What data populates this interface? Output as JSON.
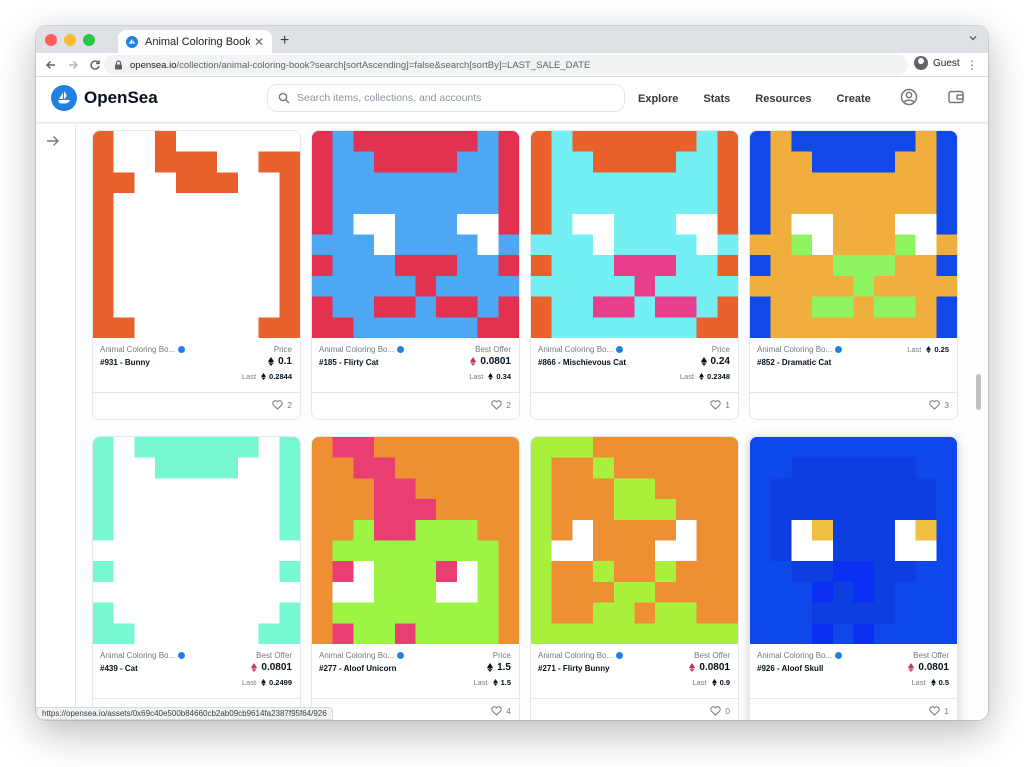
{
  "browser": {
    "tab_title": "Animal Coloring Book - Collecti",
    "url_host": "opensea.io",
    "url_path": "/collection/animal-coloring-book?search[sortAscending]=false&search[sortBy]=LAST_SALE_DATE",
    "profile_label": "Guest",
    "status_url": "https://opensea.io/assets/0x69c40e500b84660cb2ab09cb9614fa2387f95f64/926"
  },
  "header": {
    "logo_text": "OpenSea",
    "search_placeholder": "Search items, collections, and accounts",
    "nav": [
      "Explore",
      "Stats",
      "Resources",
      "Create"
    ]
  },
  "colors": {
    "brand": "#2081e2",
    "offer_eth": "#c0395d"
  },
  "icons": {
    "sidebar": "arrow-right-icon",
    "header": [
      "account-circle-icon",
      "wallet-icon"
    ],
    "likes": "heart-icon",
    "price": "eth-icon",
    "verified": "verified-badge-icon"
  },
  "cards": [
    {
      "collection": "Animal Coloring Bo...",
      "name": "#931 - Bunny",
      "price_label": "Price",
      "price": "0.1",
      "last_label": "Last",
      "last": "0.2844",
      "likes": "2",
      "price_eth": "dark"
    },
    {
      "collection": "Animal Coloring Bo...",
      "name": "#185 - Flirty Cat",
      "price_label": "Best Offer",
      "price": "0.0801",
      "last_label": "Last",
      "last": "0.34",
      "likes": "2",
      "price_eth": "offer"
    },
    {
      "collection": "Animal Coloring Bo...",
      "name": "#866 - Mischievous Cat",
      "price_label": "Price",
      "price": "0.24",
      "last_label": "Last",
      "last": "0.2348",
      "likes": "1",
      "price_eth": "dark"
    },
    {
      "collection": "Animal Coloring Bo...",
      "name": "#852 - Dramatic Cat",
      "price_label": "",
      "price": "",
      "last_label": "Last",
      "last": "0.25",
      "likes": "3",
      "price_eth": "none"
    },
    {
      "collection": "Animal Coloring Bo...",
      "name": "#439 - Cat",
      "price_label": "Best Offer",
      "price": "0.0801",
      "last_label": "Last",
      "last": "0.2499",
      "likes": "",
      "price_eth": "offer"
    },
    {
      "collection": "Animal Coloring Bo...",
      "name": "#277 - Aloof Unicorn",
      "price_label": "Price",
      "price": "1.5",
      "last_label": "Last",
      "last": "1.5",
      "likes": "4",
      "price_eth": "dark"
    },
    {
      "collection": "Animal Coloring Bo...",
      "name": "#271 - Flirty Bunny",
      "price_label": "Best Offer",
      "price": "0.0801",
      "last_label": "Last",
      "last": "0.9",
      "likes": "0",
      "price_eth": "offer"
    },
    {
      "collection": "Animal Coloring Bo...",
      "name": "#926 - Aloof Skull",
      "price_label": "Best Offer",
      "price": "0.0801",
      "last_label": "Last",
      "last": "0.5",
      "likes": "1",
      "price_eth": "offer"
    }
  ]
}
